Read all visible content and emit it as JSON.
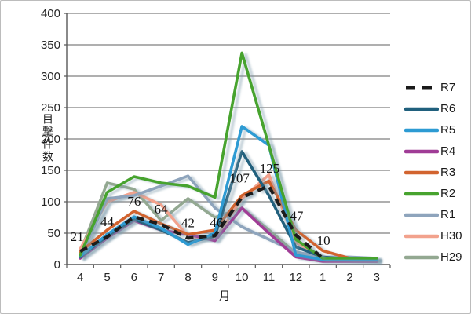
{
  "chart_data": {
    "type": "line",
    "title": "",
    "xlabel": "月",
    "ylabel": "目撃件数",
    "x_categories": [
      "4",
      "5",
      "6",
      "7",
      "8",
      "9",
      "10",
      "11",
      "12",
      "1",
      "2",
      "3"
    ],
    "ylim": [
      0,
      400
    ],
    "y_tick_step": 50,
    "y_ticks": [
      0,
      50,
      100,
      150,
      200,
      250,
      300,
      350,
      400
    ],
    "grid": true,
    "legend_position": "right",
    "data_labels_series": "R7",
    "data_labels": [
      21,
      44,
      76,
      64,
      42,
      46,
      107,
      125,
      47,
      10
    ],
    "series": [
      {
        "name": "R7",
        "color": "#1a1a1a",
        "dashed": true,
        "labeled": true,
        "values": [
          21,
          44,
          76,
          64,
          42,
          46,
          107,
          125,
          47,
          10,
          null,
          null
        ]
      },
      {
        "name": "R6",
        "color": "#20607d",
        "dashed": false,
        "values": [
          12,
          45,
          72,
          55,
          35,
          45,
          180,
          110,
          28,
          12,
          8,
          8
        ]
      },
      {
        "name": "R5",
        "color": "#2d9bd3",
        "dashed": false,
        "values": [
          13,
          48,
          76,
          58,
          32,
          50,
          220,
          190,
          15,
          8,
          8,
          8
        ]
      },
      {
        "name": "R4",
        "color": "#a03c96",
        "dashed": false,
        "values": [
          10,
          42,
          70,
          55,
          48,
          38,
          90,
          50,
          12,
          5,
          5,
          5
        ]
      },
      {
        "name": "R3",
        "color": "#d2642f",
        "dashed": false,
        "values": [
          20,
          55,
          85,
          65,
          48,
          55,
          110,
          133,
          55,
          22,
          10,
          8
        ]
      },
      {
        "name": "R2",
        "color": "#47a32e",
        "dashed": false,
        "values": [
          15,
          115,
          140,
          130,
          125,
          107,
          337,
          190,
          40,
          10,
          10,
          10
        ]
      },
      {
        "name": "R1",
        "color": "#8ea4bc",
        "dashed": false,
        "values": [
          12,
          105,
          110,
          125,
          141,
          90,
          60,
          40,
          20,
          12,
          12,
          10
        ]
      },
      {
        "name": "H30",
        "color": "#f2a28d",
        "dashed": false,
        "values": [
          25,
          100,
          115,
          95,
          45,
          40,
          105,
          143,
          35,
          12,
          8,
          5
        ]
      },
      {
        "name": "H29",
        "color": "#93a891",
        "dashed": false,
        "values": [
          20,
          130,
          120,
          70,
          105,
          75,
          90,
          55,
          18,
          10,
          10,
          8
        ]
      }
    ]
  }
}
